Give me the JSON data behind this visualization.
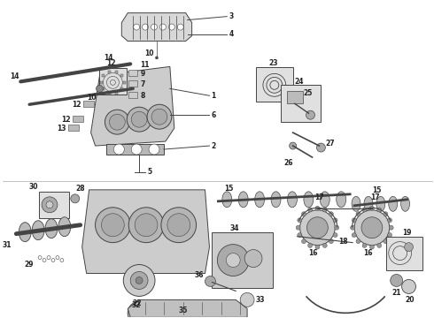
{
  "bg_color": "#ffffff",
  "lc": "#444444",
  "tc": "#222222",
  "fig_w": 4.9,
  "fig_h": 3.6,
  "dpi": 100,
  "label_fs": 5.5
}
